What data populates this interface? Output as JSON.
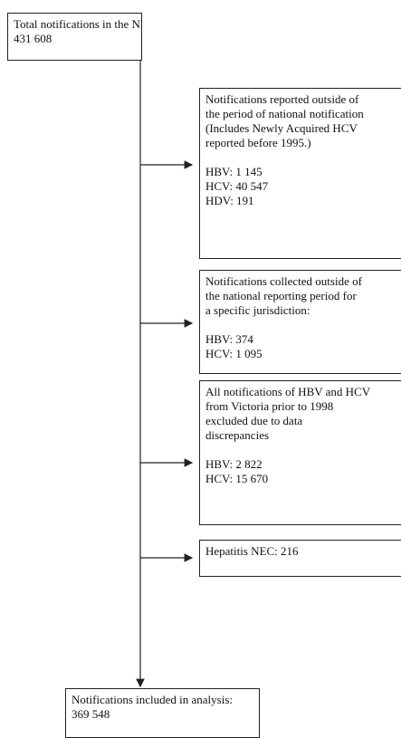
{
  "nodes": [
    {
      "lines": [
        "Total notifications in the NNDSS dataset",
        "431 608"
      ]
    },
    {
      "lines": [
        "Notifications reported outside of",
        "the period of national notification",
        "(Includes Newly Acquired HCV",
        "reported before 1995.)"
      ],
      "counts": [
        "HBV: 1 145",
        "HCV: 40 547",
        "HDV: 191"
      ]
    },
    {
      "lines": [
        "Notifications collected outside of",
        "the national reporting period for",
        "a specific jurisdiction:"
      ],
      "counts": [
        "HBV: 374",
        "HCV: 1 095"
      ]
    },
    {
      "lines": [
        "All notifications of HBV and HCV",
        "from Victoria prior to 1998",
        "excluded due to data",
        "discrepancies"
      ],
      "counts": [
        "HBV: 2 822",
        "HCV: 15 670"
      ]
    },
    {
      "lines": [
        "Hepatitis NEC: 216"
      ]
    },
    {
      "lines": [
        "Notifications included in analysis:",
        "369 548"
      ]
    }
  ]
}
